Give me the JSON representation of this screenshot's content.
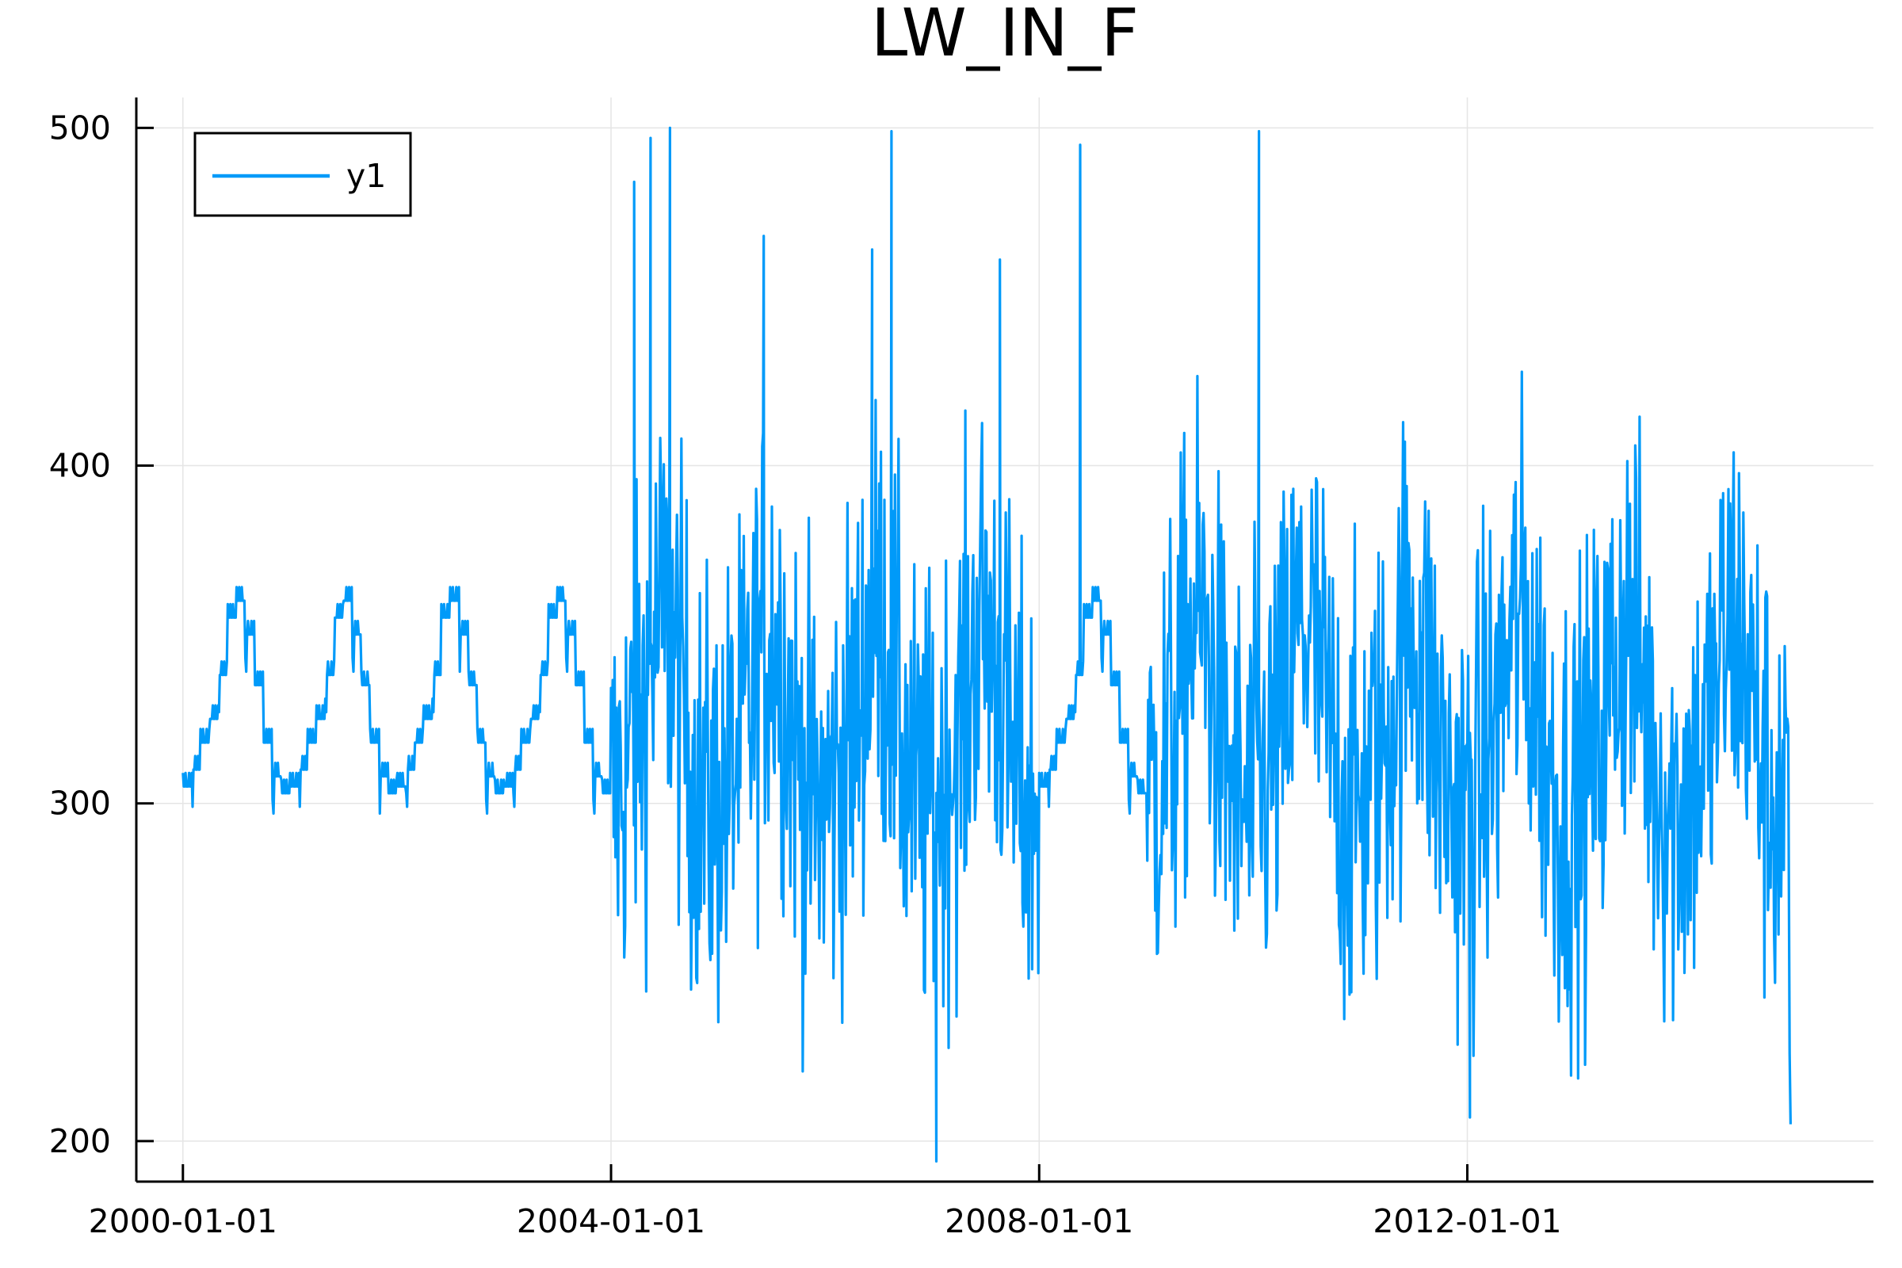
{
  "chart_data": {
    "type": "line",
    "title": "LW_IN_F",
    "xlabel": "",
    "ylabel": "",
    "x_axis_type": "date",
    "xlim": [
      "1999-07-26",
      "2015-10-18"
    ],
    "ylim": [
      188,
      509
    ],
    "x_ticks": [
      "2000-01-01",
      "2004-01-01",
      "2008-01-01",
      "2012-01-01"
    ],
    "y_ticks": [
      200,
      300,
      400,
      500
    ],
    "grid": true,
    "legend": {
      "position": "top-left",
      "entries": [
        "y1"
      ]
    },
    "series": [
      {
        "name": "y1",
        "color": "#009af9",
        "description": "Monthly smooth seasonal cycle 2000-2003 (~293-362), then highly variable high-frequency data 2004-2015 (~194-500); includes a smooth segment around 2008.",
        "x_start": "2000-01-01",
        "x_end": "2015-01-01",
        "smooth_years": [
          2000,
          2001,
          2002,
          2003,
          2008
        ],
        "seasonal_cycle_monthly": [
          305,
          310,
          318,
          325,
          338,
          355,
          360,
          350,
          335,
          318,
          308,
          303
        ],
        "noisy_range": [
          194,
          500
        ],
        "notable_spikes": [
          {
            "x": "2004-03-20",
            "y": 484
          },
          {
            "x": "2004-05-15",
            "y": 497
          },
          {
            "x": "2004-07-20",
            "y": 500
          },
          {
            "x": "2005-06-05",
            "y": 468
          },
          {
            "x": "2006-06-10",
            "y": 464
          },
          {
            "x": "2006-08-15",
            "y": 499
          },
          {
            "x": "2007-08-20",
            "y": 461
          },
          {
            "x": "2008-05-20",
            "y": 495
          },
          {
            "x": "2010-01-20",
            "y": 499
          },
          {
            "x": "2007-01-15",
            "y": 194
          },
          {
            "x": "2012-01-10",
            "y": 207
          }
        ]
      }
    ]
  }
}
